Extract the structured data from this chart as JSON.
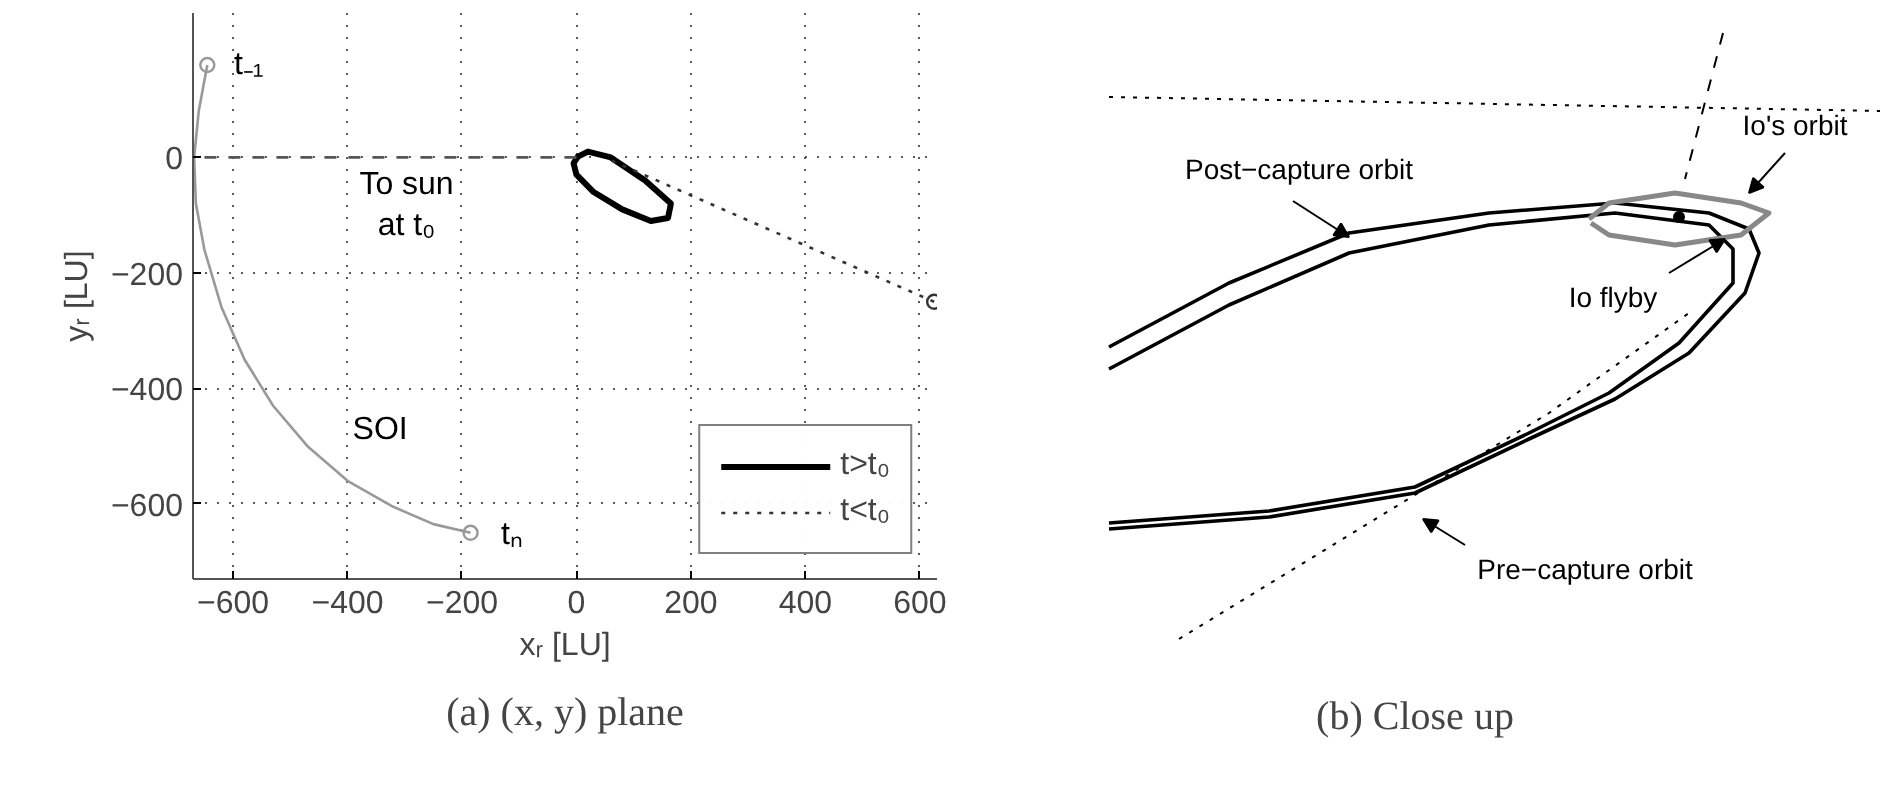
{
  "chart_data": [
    {
      "type": "line",
      "xlabel": "xᵣ [LU]",
      "ylabel": "yᵣ [LU]",
      "xlim": [
        -670,
        630
      ],
      "ylim": [
        -730,
        250
      ],
      "xticks": [
        -600,
        -400,
        -200,
        0,
        200,
        400,
        600
      ],
      "yticks": [
        -600,
        -400,
        -200,
        0
      ],
      "grid": true,
      "legend": "bottom right",
      "series": [
        {
          "name": "t>t₀",
          "color": "#000000",
          "line_style": "solid",
          "x": [
            0,
            20,
            60,
            120,
            165,
            160,
            130,
            80,
            30,
            0,
            -5,
            5
          ],
          "values": [
            0,
            10,
            0,
            -40,
            -80,
            -105,
            -110,
            -90,
            -60,
            -30,
            -10,
            5
          ]
        },
        {
          "name": "t<t₀",
          "color": "#333333",
          "line_style": "dotted",
          "x": [
            625,
            60
          ],
          "values": [
            -250,
            -5
          ]
        },
        {
          "color": "#999999",
          "line_style": "solid",
          "x": [
            -645,
            -660,
            -668,
            -665,
            -650,
            -620,
            -580,
            -530,
            -470,
            -400,
            -320,
            -250,
            -185
          ],
          "values": [
            160,
            80,
            0,
            -80,
            -160,
            -260,
            -350,
            -430,
            -500,
            -560,
            -605,
            -635,
            -650
          ]
        },
        {
          "color": "#555555",
          "line_style": "dashed",
          "x": [
            0,
            -668
          ],
          "values": [
            0,
            0
          ]
        },
        {
          "type": "scatter",
          "marker": "circle",
          "color": "#999999",
          "x": [
            -645,
            -185
          ],
          "values": [
            160,
            -650
          ]
        },
        {
          "type": "scatter",
          "marker": "circle",
          "color": "#333333",
          "x": [
            625
          ],
          "values": [
            -250
          ]
        }
      ],
      "annotations": [
        "t₋₁",
        "tₙ",
        "SOI",
        "To sun\nat t₀",
        "(a) (x, y) plane"
      ]
    },
    {
      "type": "other",
      "annotations": [
        "Post−capture orbit",
        "Io's orbit",
        "Io flyby",
        "Pre−capture orbit",
        "(b) Close up"
      ]
    }
  ]
}
